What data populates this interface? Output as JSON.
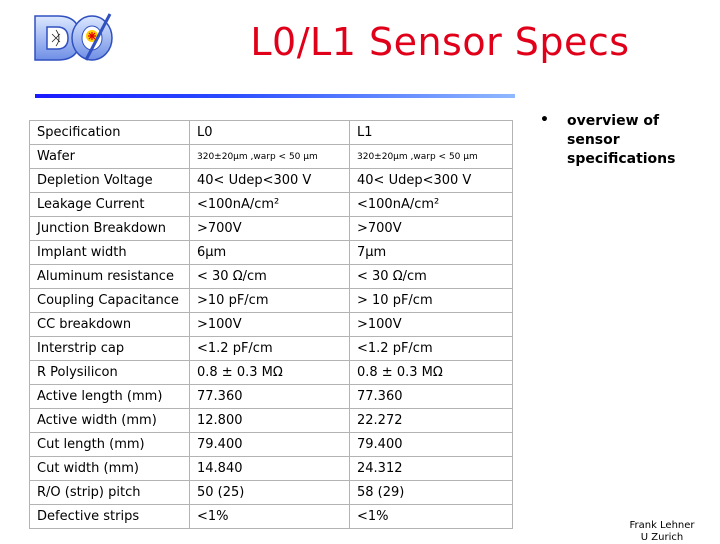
{
  "logo": {
    "name": "D-zero experiment logo"
  },
  "title": "L0/L1 Sensor Specs",
  "table": {
    "headers": [
      "Specification",
      "L0",
      "L1"
    ],
    "rows": [
      [
        "Wafer",
        "320±20µm ,warp < 50 µm",
        "320±20µm ,warp < 50 µm"
      ],
      [
        "Depletion Voltage",
        "40< Udep<300 V",
        "40< Udep<300 V"
      ],
      [
        "Leakage Current",
        "<100nA/cm²",
        "<100nA/cm²"
      ],
      [
        "Junction Breakdown",
        ">700V",
        ">700V"
      ],
      [
        "Implant width",
        "6µm",
        "7µm"
      ],
      [
        "Aluminum resistance",
        "< 30 Ω/cm",
        "< 30 Ω/cm"
      ],
      [
        "Coupling Capacitance",
        ">10 pF/cm",
        "> 10 pF/cm"
      ],
      [
        "CC breakdown",
        ">100V",
        ">100V"
      ],
      [
        "Interstrip cap",
        "<1.2 pF/cm",
        "<1.2 pF/cm"
      ],
      [
        "R Polysilicon",
        "0.8 ± 0.3 MΩ",
        "0.8 ± 0.3 MΩ"
      ],
      [
        "Active length (mm)",
        "77.360",
        "77.360"
      ],
      [
        "Active width (mm)",
        "12.800",
        "22.272"
      ],
      [
        "Cut length (mm)",
        "79.400",
        "79.400"
      ],
      [
        "Cut width (mm)",
        "14.840",
        "24.312"
      ],
      [
        "R/O (strip) pitch",
        "50 (25)",
        "58 (29)"
      ],
      [
        "Defective strips",
        "<1%",
        "<1%"
      ]
    ]
  },
  "bullet": {
    "symbol": "•",
    "text": "overview of sensor specifications"
  },
  "author": {
    "line1": "Frank Lehner",
    "line2": "U Zurich"
  },
  "colors": {
    "title": "#e0001a",
    "rule": "#1a1aff",
    "logo_outline": "#7fa7ff",
    "logo_red": "#e00000",
    "logo_yellow": "#ffcc00"
  }
}
